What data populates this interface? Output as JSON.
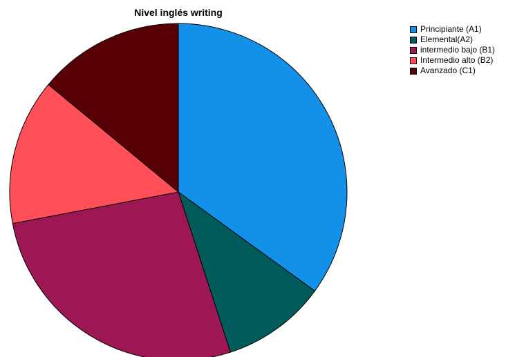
{
  "chart_data": {
    "type": "pie",
    "title": "Nivel inglés writing",
    "categories": [
      "Principiante (A1)",
      "Elemental(A2)",
      "intermedio bajo (B1)",
      "Intermedio alto (B2)",
      "Avanzado (C1)"
    ],
    "values": [
      35,
      10,
      27,
      14,
      14
    ],
    "colors": [
      "#1390E8",
      "#005B5B",
      "#9C1754",
      "#FF4F58",
      "#580005"
    ],
    "start_angle_deg": 0,
    "direction": "clockwise",
    "legend_position": "top-right"
  }
}
